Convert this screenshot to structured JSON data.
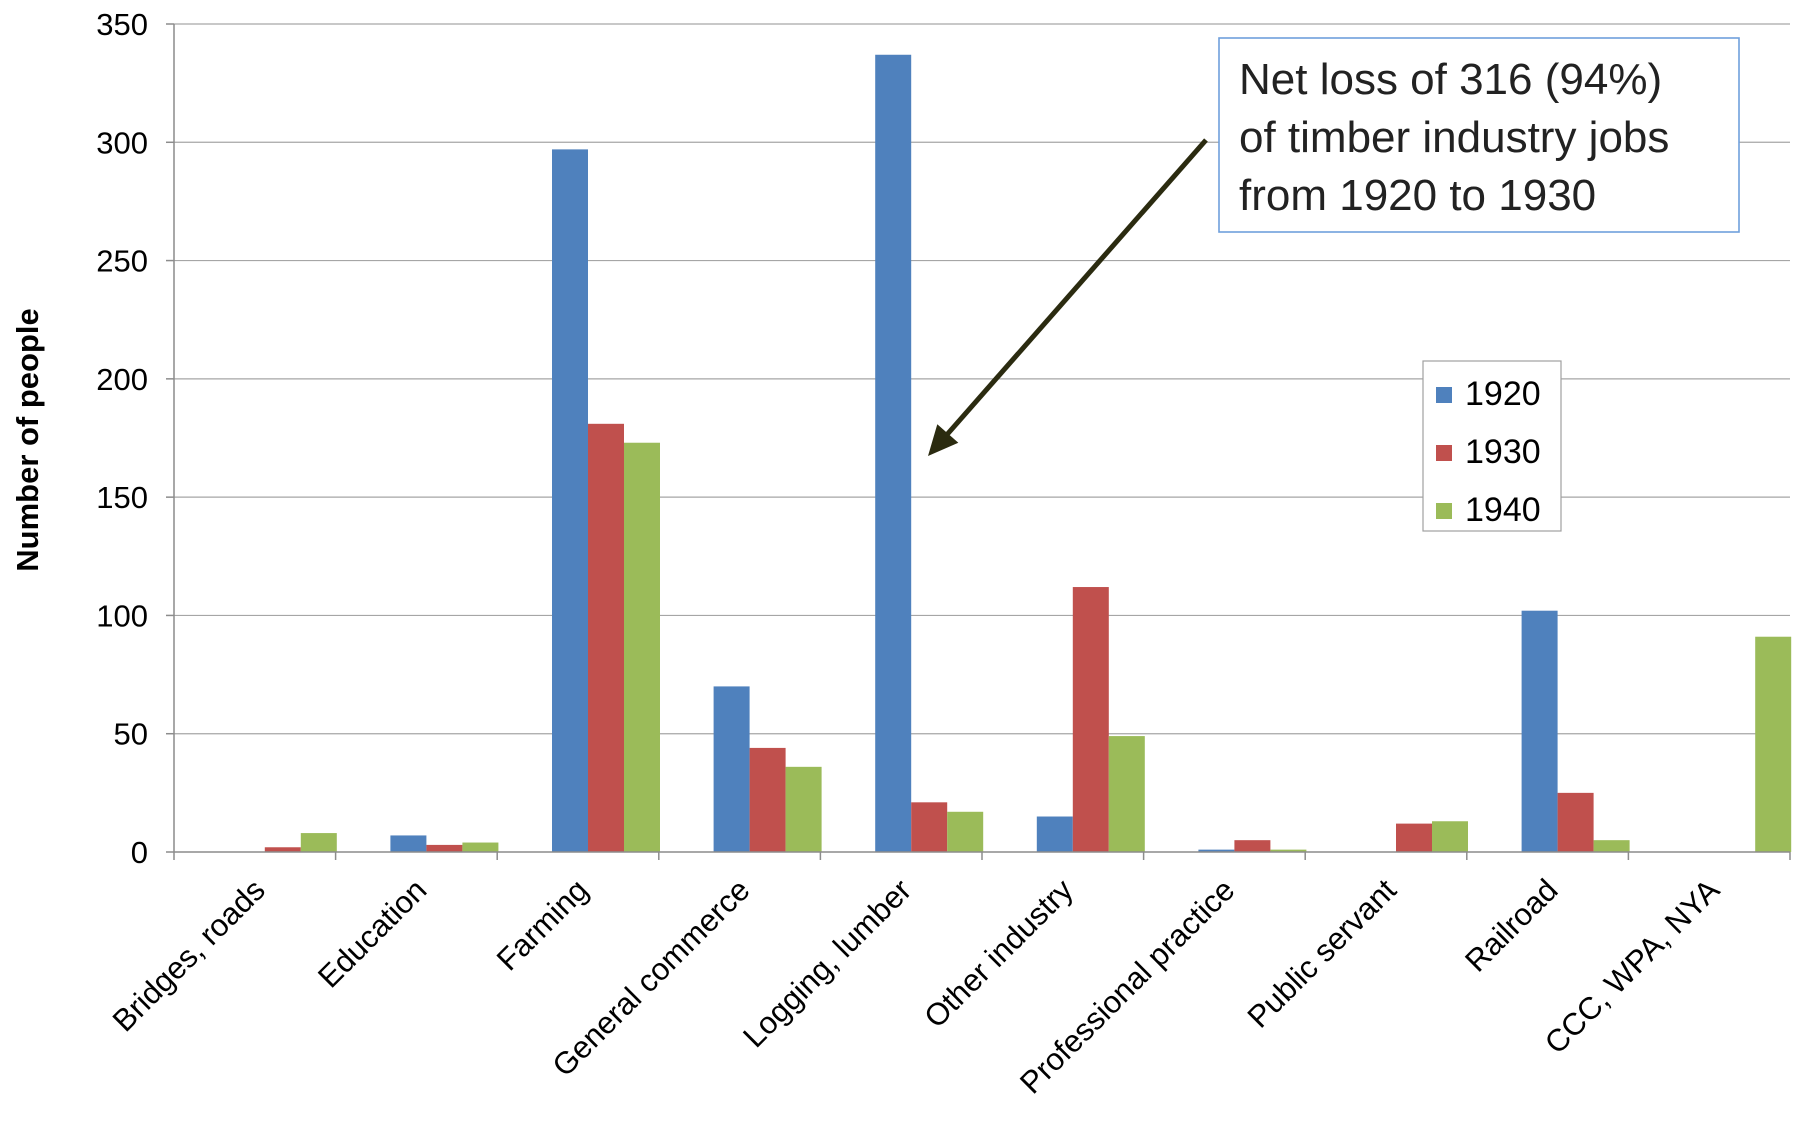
{
  "chart_data": {
    "type": "bar",
    "ylabel": "Number of people",
    "ylim": [
      0,
      350
    ],
    "yticks": [
      0,
      50,
      100,
      150,
      200,
      250,
      300,
      350
    ],
    "grid": true,
    "legend_position": "right",
    "categories": [
      "Bridges, roads",
      "Education",
      "Farming",
      "General commerce",
      "Logging, lumber",
      "Other industry",
      "Professional practice",
      "Public servant",
      "Railroad",
      "CCC, WPA, NYA"
    ],
    "series": [
      {
        "name": "1920",
        "color": "#4f81bd",
        "values": [
          0,
          7,
          297,
          70,
          337,
          15,
          1,
          0,
          102,
          0
        ]
      },
      {
        "name": "1930",
        "color": "#c0504d",
        "values": [
          2,
          3,
          181,
          44,
          21,
          112,
          5,
          12,
          25,
          0
        ]
      },
      {
        "name": "1940",
        "color": "#9bbb59",
        "values": [
          8,
          4,
          173,
          36,
          17,
          49,
          1,
          13,
          5,
          91
        ]
      }
    ],
    "annotation": {
      "lines": [
        "Net loss of 316 (94%)",
        "of timber industry jobs",
        "from 1920 to 1930"
      ]
    }
  }
}
